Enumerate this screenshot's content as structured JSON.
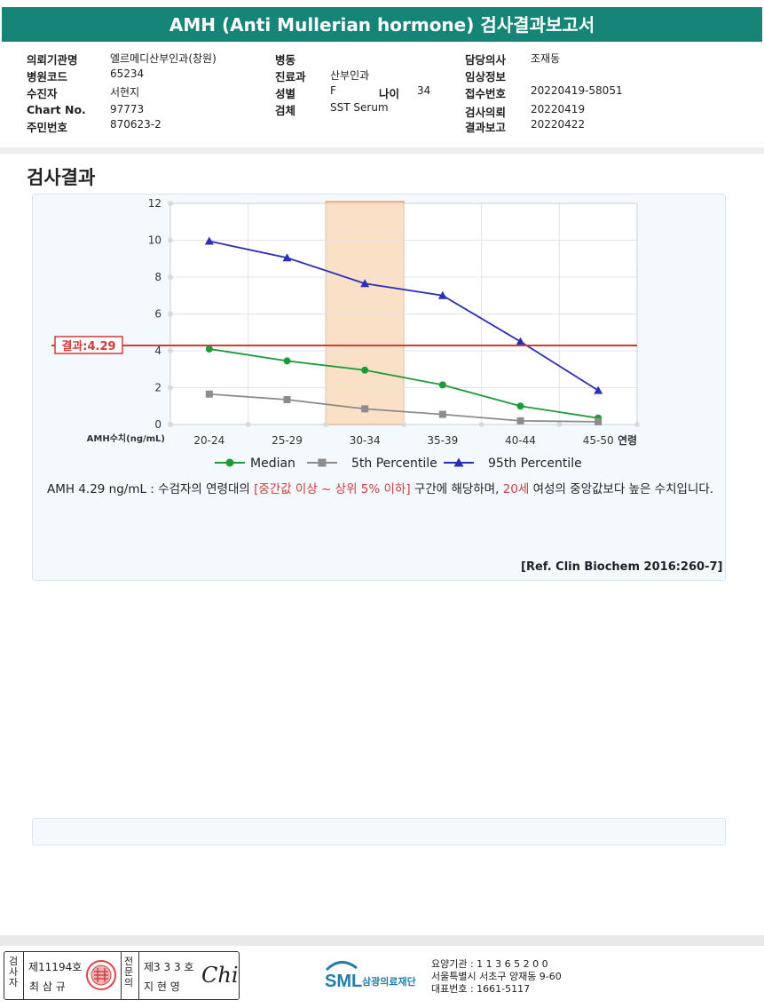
{
  "title": "AMH (Anti Mullerian hormone) 검사결과보고서",
  "info": {
    "col1": [
      {
        "label": "의뢰기관명",
        "value": "엘르메디산부인과(창원)"
      },
      {
        "label": "병원코드",
        "value": "65234"
      },
      {
        "label": "수진자",
        "value": "서현지"
      },
      {
        "label": "Chart No.",
        "value": "97773"
      },
      {
        "label": "주민번호",
        "value": "870623-2"
      }
    ],
    "col2": [
      {
        "label": "병동",
        "value": ""
      },
      {
        "label": "진료과",
        "value": "산부인과"
      },
      {
        "label": "성별",
        "value": "F"
      },
      {
        "label": "검체",
        "value": "SST Serum"
      }
    ],
    "age_label": "나이",
    "age_value": "34",
    "col3": [
      {
        "label": "담당의사",
        "value": "조재동"
      },
      {
        "label": "임상정보",
        "value": ""
      },
      {
        "label": "접수번호",
        "value": "20220419-58051"
      },
      {
        "label": "검사의뢰",
        "value": "20220419"
      },
      {
        "label": "결과보고",
        "value": "20220422"
      }
    ]
  },
  "section_title": "검사결과",
  "chart_data": {
    "type": "line",
    "categories": [
      "20-24",
      "25-29",
      "30-34",
      "35-39",
      "40-44",
      "45-50"
    ],
    "x_axis_suffix": "연령",
    "ylabel": "AMH수치(ng/mL)",
    "ylim": [
      0,
      12
    ],
    "yticks": [
      0,
      2,
      4,
      6,
      8,
      10,
      12
    ],
    "grid": true,
    "highlight_category": "30-34",
    "result_line": {
      "value": 4.29,
      "label": "결과:4.29",
      "color": "#d33a3a"
    },
    "series": [
      {
        "name": "Median",
        "values": [
          4.1,
          3.45,
          2.95,
          2.15,
          1.0,
          0.35
        ],
        "color": "#1f9a3a",
        "marker": "circle"
      },
      {
        "name": "5th Percentile",
        "values": [
          1.65,
          1.35,
          0.85,
          0.55,
          0.2,
          0.15
        ],
        "color": "#8c8c8c",
        "marker": "square"
      },
      {
        "name": "95th Percentile",
        "values": [
          9.95,
          9.05,
          7.65,
          7.0,
          4.5,
          1.85
        ],
        "color": "#2b2fb5",
        "marker": "triangle"
      }
    ],
    "legend_position": "bottom"
  },
  "description": {
    "part1": "AMH  4.29 ng/mL : 수검자의 연령대의 ",
    "part2": "[중간값 이상 ~ 상위 5% 이하]",
    "part3": "  구간에 해당하며, ",
    "part4": "20세",
    "part5": " 여성의 중앙값보다 높은 수치입니다."
  },
  "reference": "[Ref. Clin Biochem 2016:260-7]",
  "signature": {
    "tester_label": "검사자",
    "tester_no": "제11194호",
    "tester_name": "최 삼 규",
    "specialist_label": "전문의",
    "specialist_no": "제3 3 3 호",
    "specialist_name": "지 현 영",
    "sign": "Chi"
  },
  "org": {
    "logo_text": "SML",
    "name": "삼광의료재단",
    "code_line": "요양기관 : 1 1 3 6 5 2 0 0",
    "address": "서울특별시 서초구 양재동 9-60",
    "phone": "대표번호 : 1661-5117"
  }
}
